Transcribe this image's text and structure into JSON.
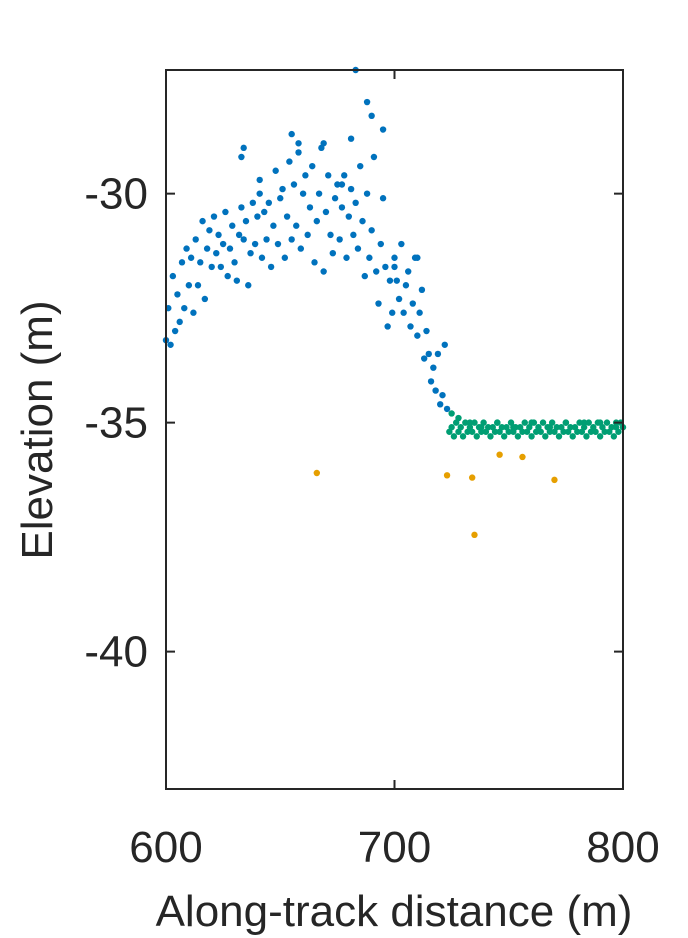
{
  "chart_data": {
    "type": "scatter",
    "xlabel": "Along-track distance (m)",
    "ylabel": "Elevation (m)",
    "xlim": [
      600,
      800
    ],
    "ylim": [
      -43,
      -27.3
    ],
    "xticks": [
      600,
      700,
      800
    ],
    "yticks": [
      -30,
      -35,
      -40
    ],
    "xtick_labels": [
      "600",
      "700",
      "800"
    ],
    "ytick_labels": [
      "-30",
      "-35",
      "-40"
    ],
    "grid": false,
    "series": [
      {
        "color": "#0072BD",
        "x": [
          600,
          601,
          602,
          603,
          604,
          605,
          606,
          607,
          608,
          609,
          610,
          611,
          612,
          613,
          614,
          615,
          616,
          617,
          618,
          619,
          620,
          621,
          622,
          623,
          624,
          625,
          626,
          627,
          628,
          629,
          630,
          631,
          632,
          633,
          634,
          635,
          636,
          637,
          638,
          639,
          640,
          641,
          642,
          643,
          644,
          645,
          646,
          647,
          648,
          649,
          650,
          651,
          652,
          653,
          654,
          655,
          656,
          657,
          658,
          659,
          660,
          661,
          662,
          663,
          664,
          665,
          666,
          667,
          668,
          669,
          670,
          671,
          672,
          673,
          674,
          675,
          676,
          677,
          678,
          679,
          680,
          681,
          682,
          683,
          684,
          685,
          686,
          687,
          688,
          689,
          690,
          691,
          692,
          693,
          694,
          695,
          696,
          697,
          698,
          699,
          700,
          701,
          702,
          703,
          704,
          705,
          706,
          707,
          708,
          709,
          710,
          711,
          712,
          713,
          714,
          715,
          716,
          717,
          718,
          719,
          720,
          721,
          722,
          723,
          634,
          641,
          655,
          669,
          677,
          683,
          690,
          695,
          633,
          658,
          681,
          688,
          700,
          710
        ],
        "y": [
          -33.2,
          -32.5,
          -33.3,
          -31.8,
          -33.0,
          -32.2,
          -32.8,
          -31.5,
          -32.5,
          -31.2,
          -32.0,
          -31.4,
          -32.6,
          -31.0,
          -32.0,
          -31.5,
          -30.6,
          -32.3,
          -31.2,
          -30.8,
          -31.6,
          -30.5,
          -31.3,
          -30.9,
          -31.6,
          -31.1,
          -30.4,
          -31.8,
          -31.2,
          -30.7,
          -31.5,
          -31.9,
          -30.9,
          -30.3,
          -31.0,
          -30.6,
          -32.0,
          -31.3,
          -30.2,
          -31.1,
          -30.5,
          -29.7,
          -31.4,
          -30.4,
          -31.0,
          -30.2,
          -31.6,
          -30.7,
          -29.5,
          -31.1,
          -30.1,
          -29.9,
          -31.4,
          -30.5,
          -29.3,
          -31.0,
          -29.8,
          -30.7,
          -29.1,
          -31.2,
          -30.0,
          -29.6,
          -30.9,
          -30.3,
          -29.4,
          -31.5,
          -30.6,
          -30.0,
          -29.0,
          -31.7,
          -30.4,
          -29.6,
          -30.9,
          -31.3,
          -30.1,
          -29.8,
          -31.0,
          -30.3,
          -29.6,
          -31.4,
          -30.5,
          -29.9,
          -30.9,
          -30.2,
          -31.2,
          -29.4,
          -30.6,
          -31.8,
          -30.0,
          -31.4,
          -30.8,
          -29.2,
          -31.7,
          -32.4,
          -31.1,
          -30.1,
          -31.6,
          -32.9,
          -31.9,
          -32.6,
          -31.4,
          -31.9,
          -32.3,
          -31.1,
          -32.6,
          -32.0,
          -31.7,
          -32.9,
          -32.4,
          -31.4,
          -33.1,
          -32.6,
          -32.1,
          -33.6,
          -33.0,
          -33.5,
          -34.1,
          -33.8,
          -34.3,
          -33.5,
          -34.6,
          -34.4,
          -33.3,
          -34.7,
          -29.0,
          -30.0,
          -28.7,
          -28.9,
          -29.8,
          -27.3,
          -28.3,
          -28.6,
          -29.2,
          -28.9,
          -28.8,
          -28.0,
          -31.6,
          -31.4
        ]
      },
      {
        "color": "#009E73",
        "x": [
          724,
          725,
          726,
          727,
          728,
          729,
          730,
          731,
          732,
          733,
          734,
          735,
          736,
          737,
          738,
          739,
          740,
          741,
          742,
          743,
          744,
          745,
          746,
          747,
          748,
          749,
          750,
          751,
          752,
          753,
          754,
          755,
          756,
          757,
          758,
          759,
          760,
          761,
          762,
          763,
          764,
          765,
          766,
          767,
          768,
          769,
          770,
          771,
          772,
          773,
          774,
          775,
          776,
          777,
          778,
          779,
          780,
          781,
          782,
          783,
          784,
          785,
          786,
          787,
          788,
          789,
          790,
          791,
          792,
          793,
          794,
          795,
          796,
          797,
          798,
          799,
          800,
          725,
          728,
          733,
          738,
          745,
          752,
          760,
          768,
          775,
          783,
          790,
          797
        ],
        "y": [
          -35.2,
          -35.1,
          -35.3,
          -35.0,
          -35.2,
          -35.1,
          -35.3,
          -35.0,
          -35.2,
          -35.1,
          -35.2,
          -35.0,
          -35.3,
          -35.1,
          -35.2,
          -35.0,
          -35.2,
          -35.1,
          -35.3,
          -35.1,
          -35.2,
          -35.0,
          -35.2,
          -35.1,
          -35.3,
          -35.1,
          -35.2,
          -35.0,
          -35.2,
          -35.1,
          -35.3,
          -35.1,
          -35.2,
          -35.0,
          -35.2,
          -35.1,
          -35.3,
          -35.0,
          -35.2,
          -35.1,
          -35.2,
          -35.0,
          -35.3,
          -35.1,
          -35.2,
          -35.0,
          -35.2,
          -35.1,
          -35.3,
          -35.1,
          -35.2,
          -35.0,
          -35.2,
          -35.1,
          -35.3,
          -35.1,
          -35.2,
          -35.0,
          -35.2,
          -35.1,
          -35.3,
          -35.0,
          -35.2,
          -35.1,
          -35.2,
          -35.0,
          -35.3,
          -35.1,
          -35.2,
          -35.0,
          -35.2,
          -35.1,
          -35.3,
          -35.1,
          -35.2,
          -35.0,
          -35.1,
          -34.8,
          -34.9,
          -35.0,
          -35.1,
          -35.0,
          -35.1,
          -35.0,
          -35.1,
          -35.0,
          -35.0,
          -35.0,
          -35.0
        ]
      },
      {
        "color": "#E69F00",
        "x": [
          666,
          723,
          734,
          735,
          746,
          756,
          770
        ],
        "y": [
          -36.1,
          -36.15,
          -36.2,
          -37.45,
          -35.7,
          -35.75,
          -36.25
        ]
      }
    ]
  }
}
